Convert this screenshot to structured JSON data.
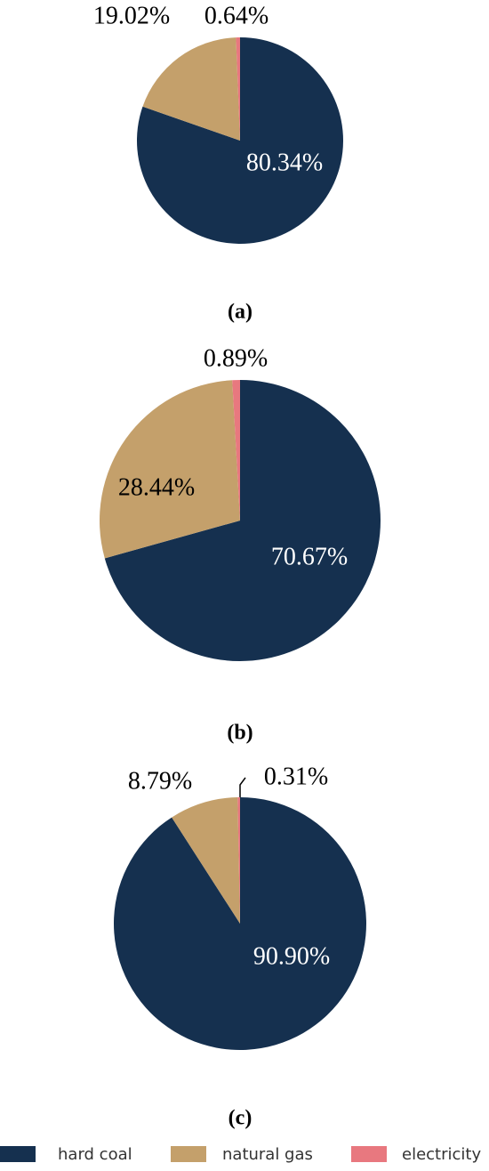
{
  "chart_data": [
    {
      "type": "pie",
      "categories": [
        "hard coal",
        "natural gas",
        "electricity"
      ],
      "values": [
        80.34,
        19.02,
        0.64
      ],
      "value_labels": [
        "80.34%",
        "19.02%",
        "0.64%"
      ],
      "colors": [
        "#15304f",
        "#c4a06b",
        "#e8787f"
      ],
      "caption": "(a)"
    },
    {
      "type": "pie",
      "categories": [
        "hard coal",
        "natural gas",
        "electricity"
      ],
      "values": [
        70.67,
        28.44,
        0.89
      ],
      "value_labels": [
        "70.67%",
        "28.44%",
        "0.89%"
      ],
      "colors": [
        "#15304f",
        "#c4a06b",
        "#e8787f"
      ],
      "caption": "(b)"
    },
    {
      "type": "pie",
      "categories": [
        "hard coal",
        "natural gas",
        "electricity"
      ],
      "values": [
        90.9,
        8.79,
        0.31
      ],
      "value_labels": [
        "90.90%",
        "8.79%",
        "0.31%"
      ],
      "colors": [
        "#15304f",
        "#c4a06b",
        "#e8787f"
      ],
      "caption": "(c)"
    }
  ]
}
